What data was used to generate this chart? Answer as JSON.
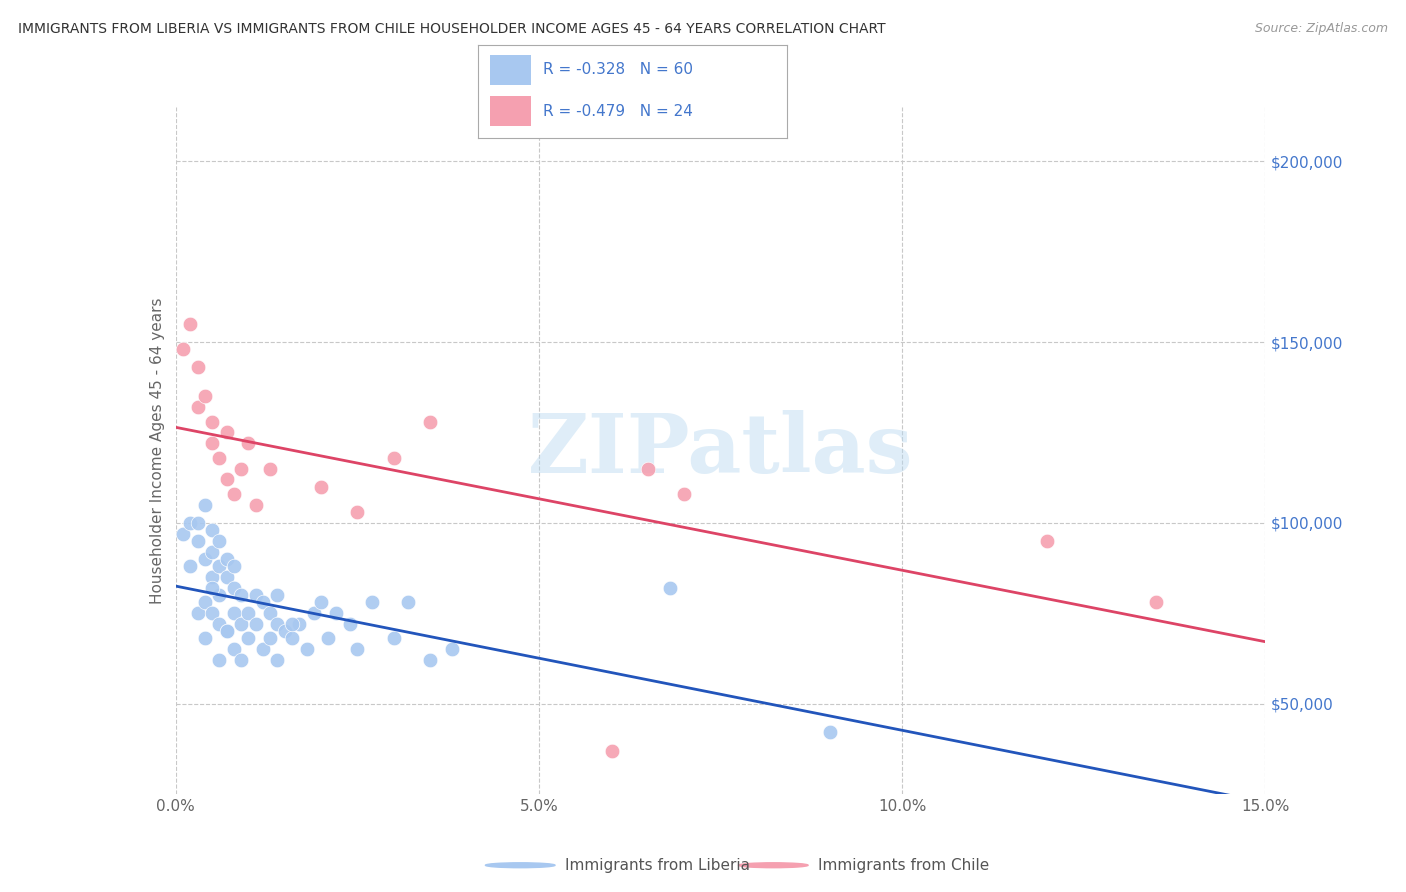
{
  "title": "IMMIGRANTS FROM LIBERIA VS IMMIGRANTS FROM CHILE HOUSEHOLDER INCOME AGES 45 - 64 YEARS CORRELATION CHART",
  "source": "Source: ZipAtlas.com",
  "ylabel": "Householder Income Ages 45 - 64 years",
  "xlim": [
    0.0,
    0.15
  ],
  "ylim": [
    25000,
    215000
  ],
  "yticks": [
    50000,
    100000,
    150000,
    200000
  ],
  "ytick_labels": [
    "$50,000",
    "$100,000",
    "$150,000",
    "$200,000"
  ],
  "xtick_labels": [
    "0.0%",
    "5.0%",
    "10.0%",
    "15.0%"
  ],
  "xticks": [
    0.0,
    0.05,
    0.1,
    0.15
  ],
  "background_color": "#ffffff",
  "grid_color": "#c8c8c8",
  "watermark": "ZIPatlas",
  "liberia_color": "#a8c8f0",
  "chile_color": "#f5a0b0",
  "liberia_line_color": "#2255bb",
  "chile_line_color": "#dd4466",
  "legend_liberia_R": "-0.328",
  "legend_liberia_N": "60",
  "legend_chile_R": "-0.479",
  "legend_chile_N": "24",
  "legend_label_liberia": "Immigrants from Liberia",
  "legend_label_chile": "Immigrants from Chile",
  "axis_label_color": "#4477cc",
  "title_color": "#333333",
  "liberia_x": [
    0.001,
    0.002,
    0.002,
    0.003,
    0.003,
    0.003,
    0.004,
    0.004,
    0.004,
    0.005,
    0.005,
    0.005,
    0.005,
    0.006,
    0.006,
    0.006,
    0.006,
    0.007,
    0.007,
    0.007,
    0.008,
    0.008,
    0.008,
    0.009,
    0.009,
    0.01,
    0.01,
    0.011,
    0.011,
    0.012,
    0.012,
    0.013,
    0.013,
    0.014,
    0.014,
    0.015,
    0.016,
    0.017,
    0.018,
    0.019,
    0.02,
    0.021,
    0.022,
    0.024,
    0.025,
    0.027,
    0.03,
    0.032,
    0.035,
    0.038,
    0.004,
    0.005,
    0.006,
    0.007,
    0.008,
    0.009,
    0.014,
    0.016,
    0.068,
    0.09
  ],
  "liberia_y": [
    97000,
    100000,
    88000,
    95000,
    100000,
    75000,
    105000,
    90000,
    78000,
    98000,
    92000,
    85000,
    75000,
    95000,
    88000,
    80000,
    72000,
    90000,
    85000,
    70000,
    88000,
    82000,
    75000,
    80000,
    72000,
    75000,
    68000,
    80000,
    72000,
    78000,
    65000,
    75000,
    68000,
    72000,
    62000,
    70000,
    68000,
    72000,
    65000,
    75000,
    78000,
    68000,
    75000,
    72000,
    65000,
    78000,
    68000,
    78000,
    62000,
    65000,
    68000,
    82000,
    62000,
    70000,
    65000,
    62000,
    80000,
    72000,
    82000,
    42000
  ],
  "chile_x": [
    0.001,
    0.002,
    0.003,
    0.003,
    0.004,
    0.005,
    0.005,
    0.006,
    0.007,
    0.007,
    0.008,
    0.009,
    0.01,
    0.011,
    0.013,
    0.02,
    0.025,
    0.03,
    0.035,
    0.06,
    0.065,
    0.07,
    0.12,
    0.135
  ],
  "chile_y": [
    148000,
    155000,
    143000,
    132000,
    135000,
    128000,
    122000,
    118000,
    112000,
    125000,
    108000,
    115000,
    122000,
    105000,
    115000,
    110000,
    103000,
    118000,
    128000,
    37000,
    115000,
    108000,
    95000,
    78000
  ]
}
